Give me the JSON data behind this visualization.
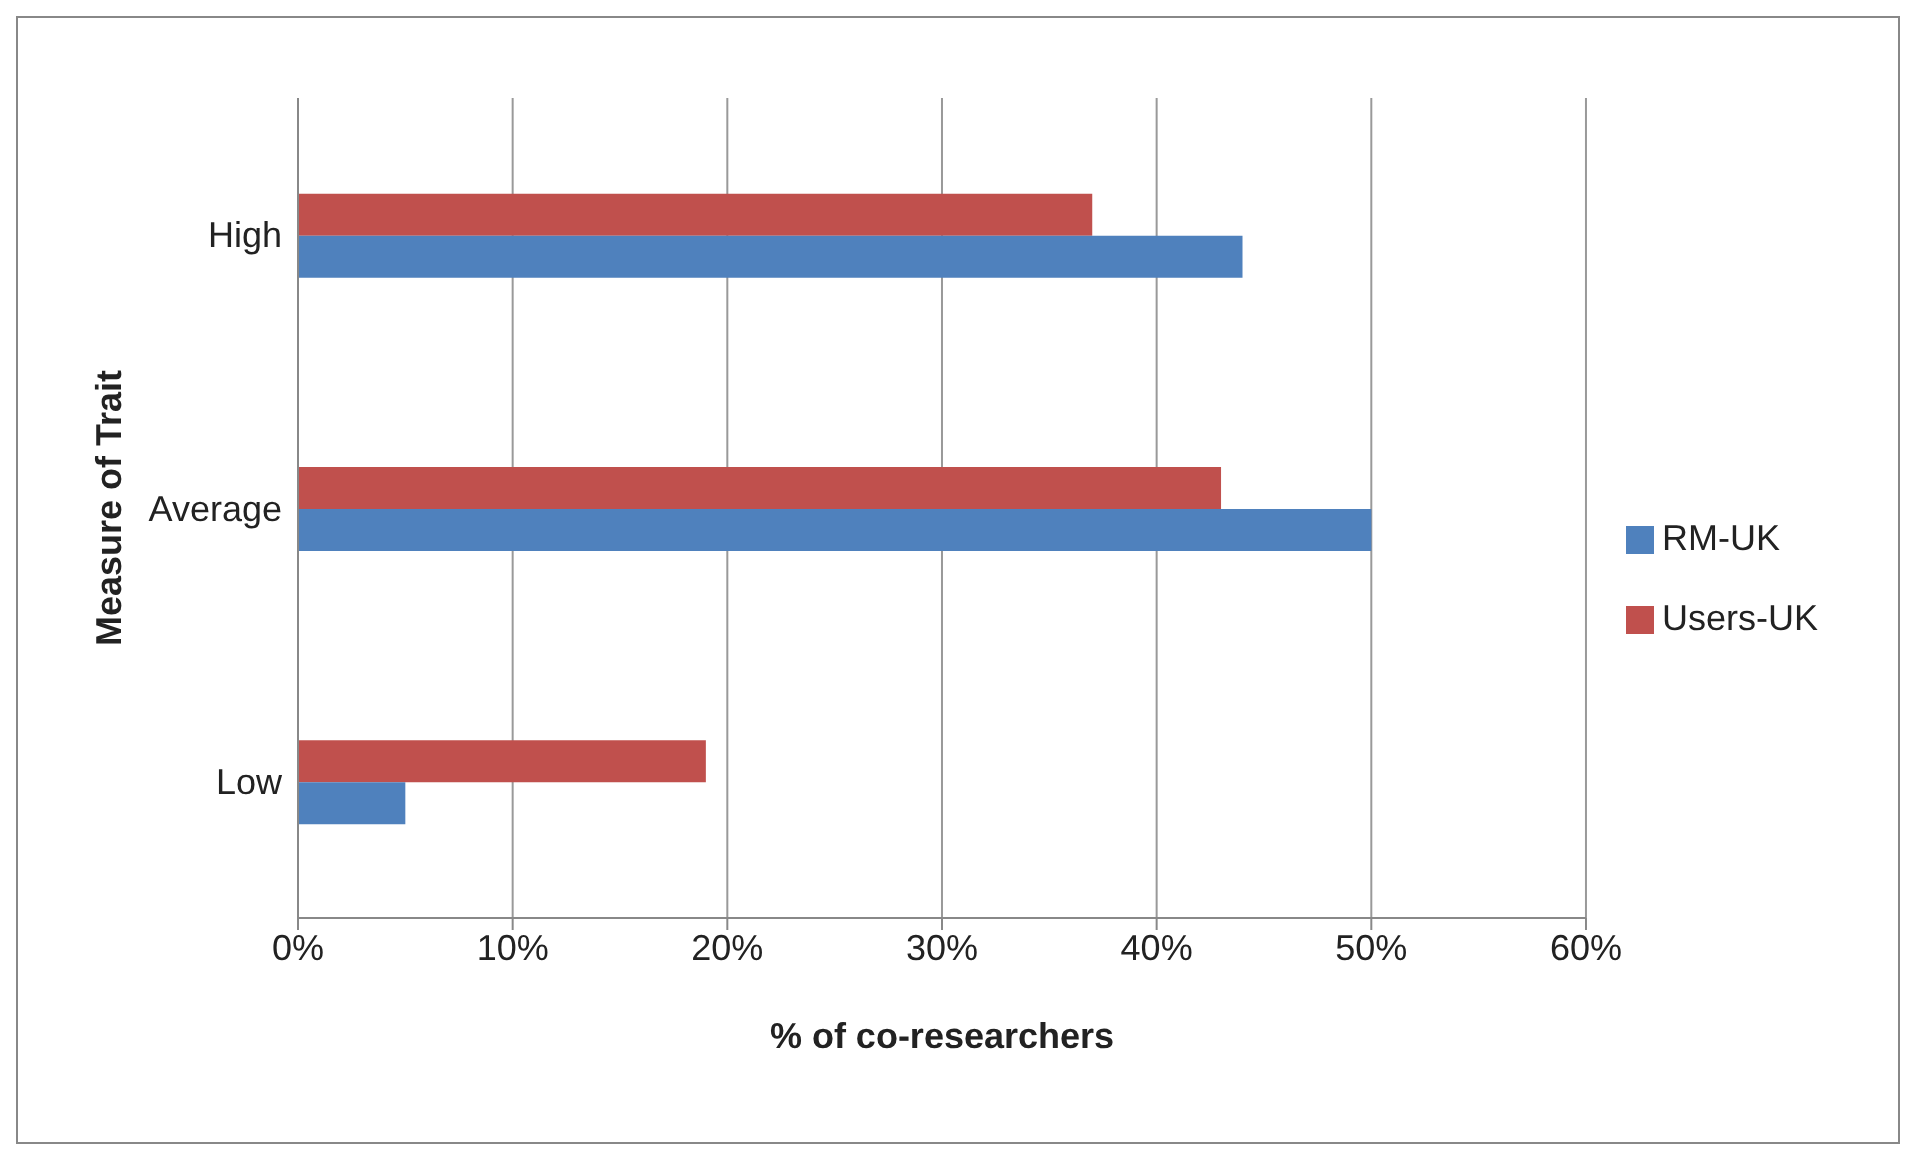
{
  "chart_data": {
    "type": "bar",
    "orientation": "horizontal",
    "xlabel": "% of co-researchers",
    "ylabel": "Measure of Trait",
    "categories": [
      "High",
      "Average",
      "Low"
    ],
    "series": [
      {
        "name": "Users-UK",
        "color": "#c0504d",
        "values": [
          37,
          43,
          19
        ]
      },
      {
        "name": "RM-UK",
        "color": "#4f81bd",
        "values": [
          44,
          50,
          5
        ]
      }
    ],
    "xlim": [
      0,
      60
    ],
    "xticks": [
      {
        "value": 0,
        "label": "0%"
      },
      {
        "value": 10,
        "label": "10%"
      },
      {
        "value": 20,
        "label": "20%"
      },
      {
        "value": 30,
        "label": "30%"
      },
      {
        "value": 40,
        "label": "40%"
      },
      {
        "value": 50,
        "label": "50%"
      },
      {
        "value": 60,
        "label": "60%"
      }
    ],
    "grid": "x",
    "legend": "right"
  }
}
